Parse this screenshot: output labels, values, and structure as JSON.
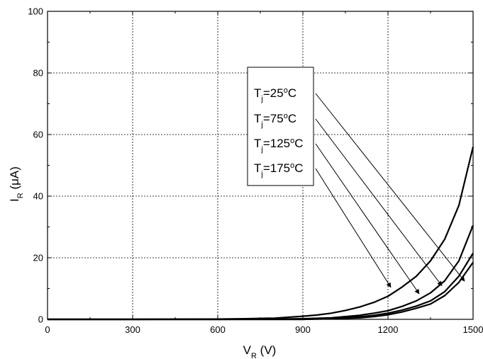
{
  "chart_data": {
    "type": "line",
    "title": "",
    "xlabel": {
      "main": "V",
      "sub": "R",
      "unit": " (V)"
    },
    "ylabel": {
      "main": "I",
      "sub": "R",
      "unit": " (μA)"
    },
    "xlim": [
      0,
      1500
    ],
    "ylim": [
      0,
      100
    ],
    "x_ticks": [
      0,
      300,
      600,
      900,
      1200,
      1500
    ],
    "y_ticks": [
      0,
      20,
      40,
      60,
      80,
      100
    ],
    "grid": "dotted",
    "legend_position": "upper-right inside plot, boxed",
    "series": [
      {
        "name": "Tj=25°C",
        "legend": {
          "base": "T",
          "sub": "j",
          "eq": "=25",
          "sup": "o",
          "unit": "C"
        },
        "x": [
          0,
          300,
          600,
          800,
          900,
          1000,
          1100,
          1150,
          1200,
          1250,
          1300,
          1350,
          1400,
          1450,
          1500
        ],
        "y": [
          0,
          0,
          0,
          0,
          0,
          0.2,
          0.5,
          0.9,
          1.5,
          2.4,
          3.6,
          5.0,
          7.7,
          12.0,
          18.5
        ]
      },
      {
        "name": "Tj=75°C",
        "legend": {
          "base": "T",
          "sub": "j",
          "eq": "=75",
          "sup": "o",
          "unit": "C"
        },
        "x": [
          0,
          300,
          600,
          800,
          900,
          1000,
          1100,
          1150,
          1200,
          1250,
          1300,
          1350,
          1400,
          1450,
          1500
        ],
        "y": [
          0,
          0,
          0,
          0,
          0,
          0.3,
          0.8,
          1.3,
          2.0,
          3.0,
          4.3,
          6.0,
          9.0,
          14.0,
          21.5
        ]
      },
      {
        "name": "Tj=125°C",
        "legend": {
          "base": "T",
          "sub": "j",
          "eq": "=125",
          "sup": "o",
          "unit": "C"
        },
        "x": [
          0,
          300,
          600,
          800,
          900,
          1000,
          1050,
          1100,
          1150,
          1200,
          1250,
          1300,
          1350,
          1400,
          1450,
          1500
        ],
        "y": [
          0,
          0,
          0,
          0.1,
          0.2,
          0.5,
          0.9,
          1.3,
          2.0,
          2.8,
          4.2,
          6.0,
          8.6,
          12.5,
          19.0,
          30.5
        ]
      },
      {
        "name": "Tj=175°C",
        "legend": {
          "base": "T",
          "sub": "j",
          "eq": "=175",
          "sup": "o",
          "unit": "C"
        },
        "x": [
          0,
          300,
          600,
          700,
          800,
          900,
          950,
          1000,
          1050,
          1100,
          1150,
          1200,
          1250,
          1300,
          1350,
          1400,
          1450,
          1500
        ],
        "y": [
          0,
          0,
          0.1,
          0.2,
          0.4,
          1.0,
          1.4,
          2.0,
          2.9,
          4.0,
          5.5,
          7.5,
          10.5,
          14.0,
          19.0,
          26.0,
          37.0,
          56.0
        ]
      }
    ],
    "annotations": [
      {
        "from_series": "Tj=25°C",
        "to": [
          1470,
          12.4
        ]
      },
      {
        "from_series": "Tj=75°C",
        "to": [
          1390,
          10.9
        ]
      },
      {
        "from_series": "Tj=125°C",
        "to": [
          1310,
          8.3
        ]
      },
      {
        "from_series": "Tj=175°C",
        "to": [
          1210,
          10.4
        ]
      }
    ]
  }
}
